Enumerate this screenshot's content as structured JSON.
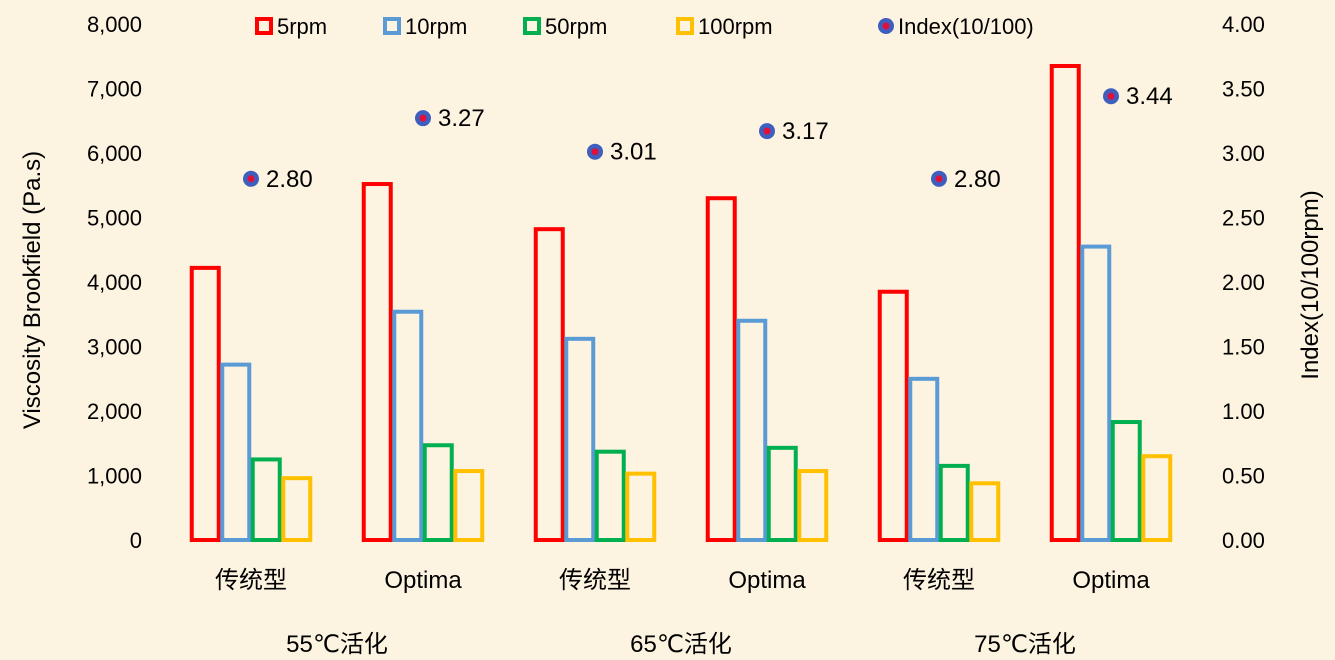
{
  "chart_data": {
    "type": "bar",
    "title": "",
    "ylabel": "Viscosity Brookfield (Pa.s)",
    "y2label": "Index(10/100rpm)",
    "ylim": [
      0,
      8000
    ],
    "y2lim": [
      0,
      4
    ],
    "yticks": [
      "0",
      "1,000",
      "2,000",
      "3,000",
      "4,000",
      "5,000",
      "6,000",
      "7,000",
      "8,000"
    ],
    "y2ticks": [
      "0.00",
      "0.50",
      "1.00",
      "1.50",
      "2.00",
      "2.50",
      "3.00",
      "3.50",
      "4.00"
    ],
    "categories": [
      "传统型",
      "Optima",
      "传统型",
      "Optima",
      "传统型",
      "Optima"
    ],
    "groups": [
      "55℃活化",
      "65℃活化",
      "75℃活化"
    ],
    "legend_position": "top",
    "series": [
      {
        "name": "5rpm",
        "color": "#ff0000",
        "values": [
          4250,
          5550,
          4850,
          5330,
          3880,
          7380
        ]
      },
      {
        "name": "10rpm",
        "color": "#5b9bd5",
        "values": [
          2750,
          3570,
          3150,
          3430,
          2530,
          4580
        ]
      },
      {
        "name": "50rpm",
        "color": "#00b050",
        "values": [
          1280,
          1500,
          1400,
          1460,
          1180,
          1860
        ]
      },
      {
        "name": "100rpm",
        "color": "#ffc000",
        "values": [
          990,
          1100,
          1060,
          1100,
          910,
          1330
        ]
      }
    ],
    "index_series": {
      "name": "Index(10/100)",
      "color": "#3f5fbf",
      "inner_color": "#e0103a",
      "values": [
        2.8,
        3.27,
        3.01,
        3.17,
        2.8,
        3.44
      ],
      "labels": [
        "2.80",
        "3.27",
        "3.01",
        "3.17",
        "2.80",
        "3.44"
      ]
    }
  }
}
